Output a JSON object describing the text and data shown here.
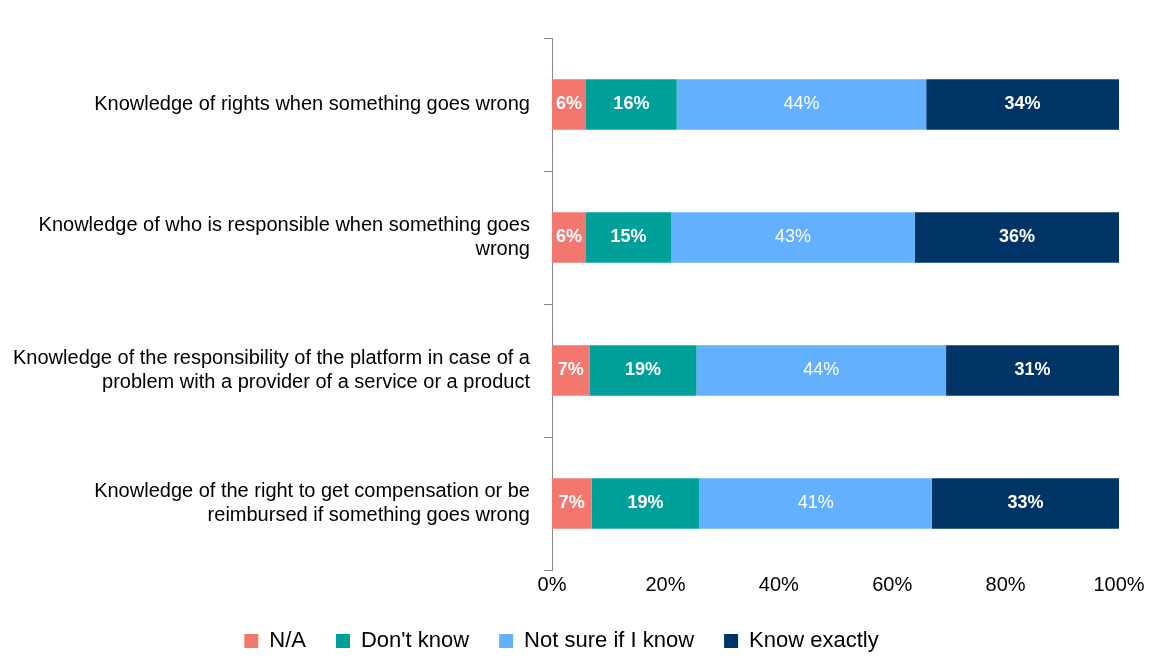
{
  "chart_data": {
    "type": "bar",
    "orientation": "horizontal",
    "stacked": true,
    "categories": [
      "Knowledge of rights when something goes wrong",
      "Knowledge of who is responsible when something goes wrong",
      "Knowledge of the responsibility of the platform in case of a problem with a provider of a service or a product",
      "Knowledge of the right to get compensation or be reimbursed if something goes wrong"
    ],
    "series": [
      {
        "name": "N/A",
        "color": "#f4776f",
        "values": [
          6,
          6,
          6.6,
          7
        ],
        "value_labels": [
          "6%",
          "6%",
          "7%",
          "7%"
        ]
      },
      {
        "name": "Don't know",
        "color": "#00a09a",
        "values": [
          16,
          15,
          18.9,
          19
        ],
        "value_labels": [
          "16%",
          "15%",
          "19%",
          "19%"
        ]
      },
      {
        "name": "Not sure if I know",
        "color": "#63b1fe",
        "values": [
          44,
          43,
          44,
          41
        ],
        "value_labels": [
          "44%",
          "43%",
          "44%",
          "41%"
        ]
      },
      {
        "name": "Know exactly",
        "color": "#003366",
        "values": [
          34,
          36,
          30.5,
          33
        ],
        "value_labels": [
          "34%",
          "36%",
          "31%",
          "33%"
        ]
      }
    ],
    "xlim": [
      0,
      100
    ],
    "xticks": [
      {
        "value": 0,
        "label": "0%"
      },
      {
        "value": 20,
        "label": "20%"
      },
      {
        "value": 40,
        "label": "40%"
      },
      {
        "value": 60,
        "label": "60%"
      },
      {
        "value": 80,
        "label": "80%"
      },
      {
        "value": 100,
        "label": "100%"
      }
    ],
    "grid": false,
    "legend": "bottom"
  }
}
